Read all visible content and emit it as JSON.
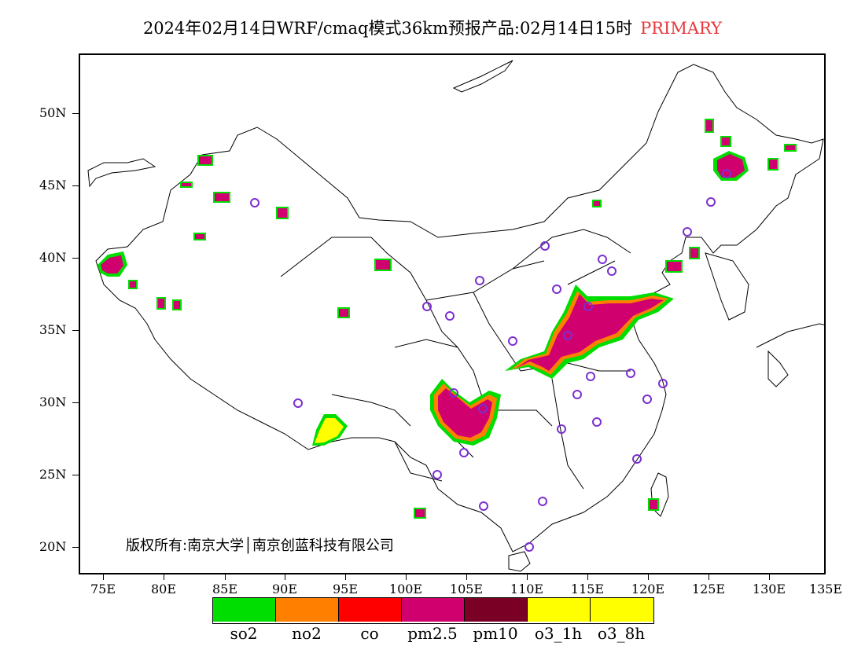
{
  "title": {
    "main": "2024年02月14日WRF/cmaq模式36km预报产品:02月14日15时",
    "tag": "PRIMARY"
  },
  "axes": {
    "lat_labels": [
      "50N",
      "45N",
      "40N",
      "35N",
      "30N",
      "25N",
      "20N"
    ],
    "lon_labels": [
      "75E",
      "80E",
      "85E",
      "90E",
      "95E",
      "100E",
      "105E",
      "110E",
      "115E",
      "120E",
      "125E",
      "130E",
      "135E"
    ]
  },
  "copyright": "版权所有:南京大学│南京创蓝科技有限公司",
  "legend": {
    "items": [
      {
        "label": "so2",
        "color": "#00dd00"
      },
      {
        "label": "no2",
        "color": "#ff8000"
      },
      {
        "label": "co",
        "color": "#ff0000"
      },
      {
        "label": "pm2.5",
        "color": "#d0006f"
      },
      {
        "label": "pm10",
        "color": "#7a0026"
      },
      {
        "label": "o3_1h",
        "color": "#ffff00"
      },
      {
        "label": "o3_8h",
        "color": "#ffff00"
      }
    ]
  },
  "colors": {
    "title_tag": "#e8383c",
    "station_ring": "#7b2fd0"
  }
}
